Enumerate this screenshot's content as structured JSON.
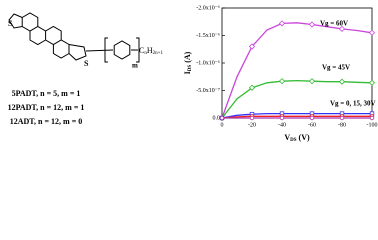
{
  "structure": {
    "atoms": [
      "S",
      "S"
    ],
    "chain": [
      "C",
      "n",
      "H",
      "2n+1"
    ],
    "repeat": "m",
    "labels": [
      "5PADT, n = 5, m = 1",
      "12PADT, n = 12, m = 1",
      "12ADT, n = 12, m = 0"
    ]
  },
  "chart_data": {
    "type": "line",
    "xlabel": {
      "symbol": "V",
      "subscript": "DS",
      "unit": "(V)"
    },
    "ylabel": {
      "symbol": "I",
      "subscript": "DS",
      "unit": "(A)"
    },
    "x": [
      0,
      -10,
      -20,
      -30,
      -40,
      -50,
      -60,
      -70,
      -80,
      -90,
      -100
    ],
    "series": [
      {
        "color": "#cc44dd",
        "marker": "diamond",
        "values": [
          0,
          -7.5e-07,
          -1.3e-06,
          -1.6e-06,
          -1.72e-06,
          -1.73e-06,
          -1.7e-06,
          -1.66e-06,
          -1.62e-06,
          -1.59e-06,
          -1.55e-06
        ]
      },
      {
        "color": "#33bb33",
        "marker": "diamond",
        "values": [
          0,
          -3.5e-07,
          -5.5e-07,
          -6.4e-07,
          -6.7e-07,
          -6.8e-07,
          -6.7e-07,
          -6.6e-07,
          -6.6e-07,
          -6.5e-07,
          -6.4e-07
        ]
      },
      {
        "color": "#3333ff",
        "marker": "square",
        "values": [
          0,
          -5e-08,
          -7e-08,
          -8e-08,
          -8e-08,
          -8e-08,
          -8e-08,
          -8e-08,
          -8e-08,
          -8e-08,
          -8e-08
        ]
      },
      {
        "color": "#ee2222",
        "marker": "circle",
        "values": [
          0,
          -2e-08,
          -3e-08,
          -3e-08,
          -3e-08,
          -3e-08,
          -3e-08,
          -3e-08,
          -3e-08,
          -3e-08,
          -3e-08
        ]
      },
      {
        "color": "#aa33aa",
        "marker": "circle",
        "values": [
          0,
          0,
          0,
          0,
          0,
          0,
          0,
          0,
          0,
          0,
          0
        ]
      }
    ],
    "annotations": [
      "Vg = 60V",
      "Vg = 45V",
      "Vg = 0, 15, 30V"
    ],
    "xlim": [
      0,
      -100
    ],
    "xticks": [
      0,
      -20,
      -40,
      -60,
      -80,
      -100
    ],
    "ylim": [
      0,
      -2e-06
    ],
    "yticks": [
      {
        "value": 0,
        "label": "0.0"
      },
      {
        "value": -5e-07,
        "label": "-5.0x10⁻⁷"
      },
      {
        "value": -1e-06,
        "label": "-1.0x10⁻⁶"
      },
      {
        "value": -1.5e-06,
        "label": "-1.5x10⁻⁶"
      },
      {
        "value": -2e-06,
        "label": "-2.0x10⁻⁶"
      }
    ],
    "grid": false
  }
}
